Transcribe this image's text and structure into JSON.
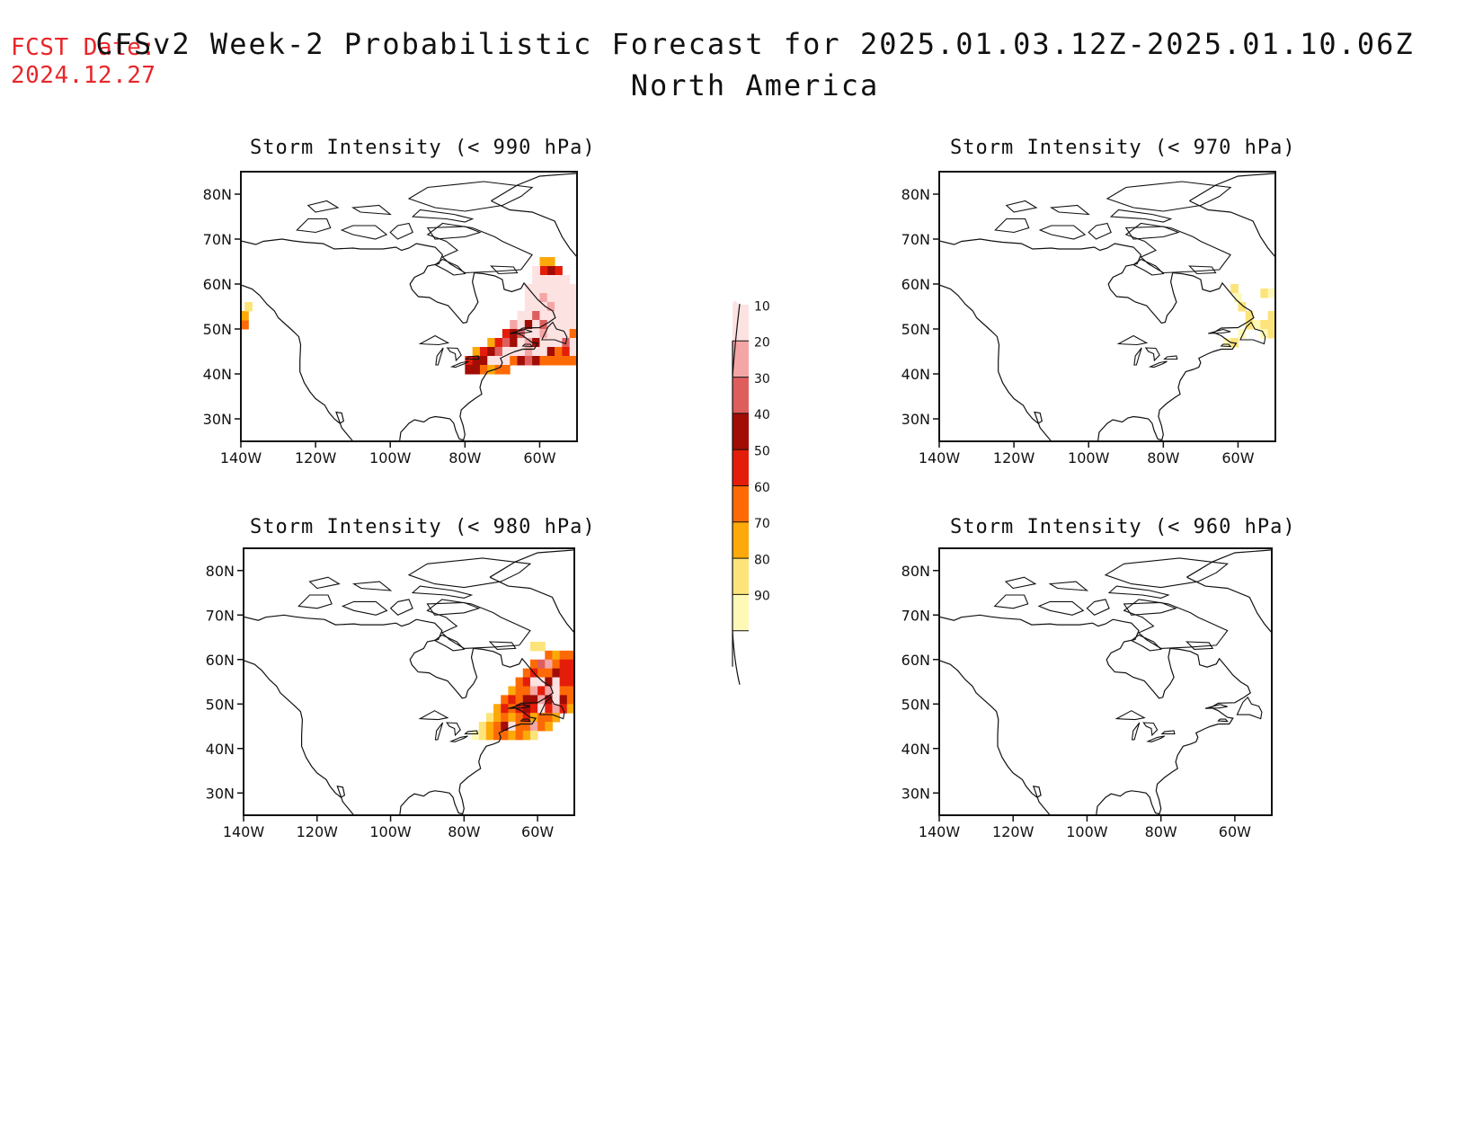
{
  "header": {
    "fcst_label": "FCST Date:",
    "fcst_date": "2024.12.27",
    "title": "CFSv2 Week-2 Probabilistic Forecast for 2025.01.03.12Z-2025.01.10.06Z",
    "region": "North America"
  },
  "panels": [
    {
      "title": "Storm Intensity (< 990 hPa)"
    },
    {
      "title": "Storm Intensity (< 970 hPa)"
    },
    {
      "title": "Storm Intensity (< 980 hPa)"
    },
    {
      "title": "Storm Intensity (< 960 hPa)"
    }
  ],
  "axes": {
    "lat_ticks": [
      "80N",
      "70N",
      "60N",
      "50N",
      "40N",
      "30N"
    ],
    "lon_ticks": [
      "140W",
      "120W",
      "100W",
      "80W",
      "60W"
    ]
  },
  "colorbar": {
    "levels": [
      "10",
      "20",
      "30",
      "40",
      "50",
      "60",
      "70",
      "80",
      "90"
    ],
    "colors": [
      "#fff9b8",
      "#fde47a",
      "#fda90a",
      "#fd6a05",
      "#e41d0a",
      "#a10c05",
      "#de5e5e",
      "#f4a6a6",
      "#fde2e2"
    ]
  },
  "chart_data": {
    "type": "map",
    "projection": "lat-lon, North America",
    "lon_range": [
      -140,
      -50
    ],
    "lat_range": [
      25,
      85
    ],
    "probability_units": "percent",
    "panels": [
      {
        "threshold_hPa": 990,
        "features": "high probability (up to >90%) over Great Lakes / Quebec / Labrador / Maritimes / NE Atlantic; small area near 50-55N, 140W"
      },
      {
        "threshold_hPa": 970,
        "features": "low probability (10-20%) near Nova Scotia / Newfoundland / Labrador coast"
      },
      {
        "threshold_hPa": 980,
        "features": "moderate to high probability over Maritimes, Gulf of St. Lawrence and NW Atlantic"
      },
      {
        "threshold_hPa": 960,
        "features": "no shaded probability"
      }
    ]
  }
}
